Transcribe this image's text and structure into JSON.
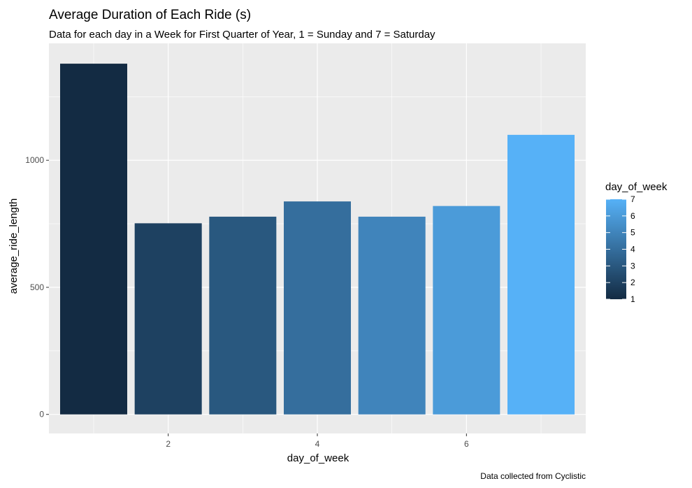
{
  "chart_data": {
    "type": "bar",
    "title": "Average Duration of Each Ride (s)",
    "subtitle": "Data for each day in a Week for First Quarter of Year, 1 = Sunday and 7 = Saturday",
    "caption": "Data collected from Cyclistic",
    "xlabel": "day_of_week",
    "ylabel": "average_ride_length",
    "x": [
      1,
      2,
      3,
      4,
      5,
      6,
      7
    ],
    "values": [
      1380,
      752,
      778,
      838,
      778,
      820,
      1100
    ],
    "xlim": [
      0.4,
      7.6
    ],
    "ylim": [
      -75,
      1460
    ],
    "x_ticks": [
      2,
      4,
      6
    ],
    "x_tick_labels": [
      "2",
      "4",
      "6"
    ],
    "y_ticks": [
      0,
      500,
      1000
    ],
    "y_tick_labels": [
      "0",
      "500",
      "1000"
    ],
    "grid": true,
    "legend": {
      "title": "day_of_week",
      "position": "right",
      "range": [
        1,
        7
      ],
      "labels": [
        "1",
        "2",
        "3",
        "4",
        "5",
        "6",
        "7"
      ],
      "colors": [
        "#132B43",
        "#56B1F7"
      ]
    },
    "panel_background": "#EBEBEB",
    "grid_color": "#FFFFFF"
  }
}
